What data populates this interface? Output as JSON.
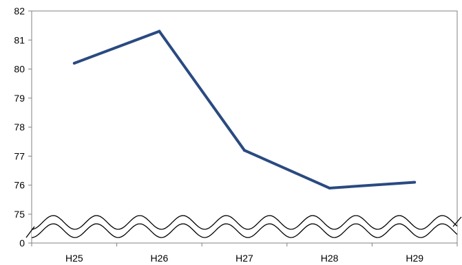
{
  "chart_data": {
    "type": "line",
    "title": "",
    "xlabel": "",
    "ylabel": "",
    "categories": [
      "H25",
      "H26",
      "H27",
      "H28",
      "H29"
    ],
    "series": [
      {
        "values": [
          80.2,
          81.3,
          77.2,
          75.9,
          76.1
        ]
      }
    ],
    "ylim": [
      75,
      82
    ],
    "y_ticks": [
      "82",
      "81",
      "80",
      "79",
      "78",
      "77",
      "76",
      "75",
      "0"
    ],
    "axis_break": {
      "from": 0,
      "to": 75,
      "style": "wavy double line"
    },
    "grid": false,
    "legend": "none",
    "colors": {
      "series": "#2a4a80",
      "axis": "#808080",
      "break_line": "#000000"
    }
  }
}
